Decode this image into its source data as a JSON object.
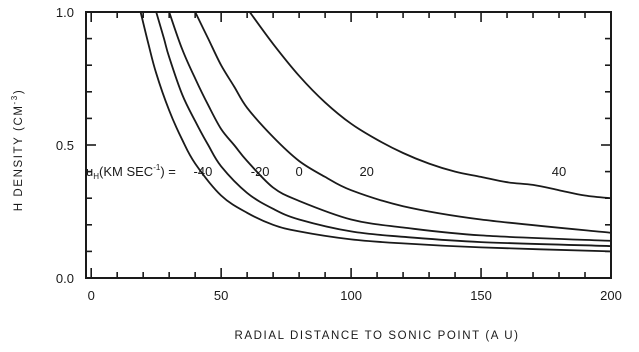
{
  "chart_data": {
    "type": "line",
    "title": "",
    "xlabel": "RADIAL DISTANCE TO SONIC POINT (A U)",
    "ylabel": "H DENSITY (CM",
    "ylabel_exp": "-3",
    "ylabel_close": ")",
    "xlim": [
      -2,
      200
    ],
    "ylim": [
      0.0,
      1.0
    ],
    "x_ticks": [
      "0",
      "50",
      "100",
      "150",
      "200"
    ],
    "y_ticks": [
      "0.0",
      "0.5",
      "1.0"
    ],
    "grid": false,
    "param_label": {
      "base": "u",
      "sub": "H",
      "unit_open": "(KM SEC",
      "unit_exp": "-1",
      "unit_close": ") ="
    },
    "series": [
      {
        "name": "-40",
        "x": [
          19,
          22,
          25,
          30,
          35,
          40,
          50,
          60,
          70,
          80,
          100,
          120,
          150,
          200
        ],
        "values": [
          1.0,
          0.88,
          0.77,
          0.63,
          0.52,
          0.43,
          0.31,
          0.245,
          0.2,
          0.175,
          0.145,
          0.13,
          0.115,
          0.1
        ]
      },
      {
        "name": "-20",
        "x": [
          25,
          28,
          30,
          35,
          40,
          45,
          50,
          60,
          70,
          80,
          100,
          120,
          150,
          200
        ],
        "values": [
          1.0,
          0.9,
          0.83,
          0.69,
          0.59,
          0.5,
          0.42,
          0.32,
          0.26,
          0.22,
          0.175,
          0.155,
          0.135,
          0.12
        ]
      },
      {
        "name": "0",
        "x": [
          30,
          35,
          40,
          45,
          50,
          55,
          60,
          70,
          80,
          100,
          120,
          150,
          200
        ],
        "values": [
          1.0,
          0.86,
          0.75,
          0.65,
          0.56,
          0.5,
          0.44,
          0.34,
          0.29,
          0.22,
          0.19,
          0.16,
          0.14
        ]
      },
      {
        "name": "20",
        "x": [
          40,
          45,
          50,
          55,
          60,
          70,
          80,
          90,
          100,
          120,
          150,
          200
        ],
        "values": [
          1.0,
          0.9,
          0.8,
          0.72,
          0.64,
          0.53,
          0.44,
          0.38,
          0.33,
          0.27,
          0.22,
          0.17
        ]
      },
      {
        "name": "40",
        "x": [
          61,
          70,
          80,
          90,
          100,
          110,
          120,
          130,
          140,
          150,
          160,
          170,
          180,
          190,
          200
        ],
        "values": [
          1.0,
          0.88,
          0.76,
          0.66,
          0.58,
          0.52,
          0.47,
          0.43,
          0.4,
          0.38,
          0.36,
          0.35,
          0.33,
          0.31,
          0.3
        ]
      }
    ]
  }
}
